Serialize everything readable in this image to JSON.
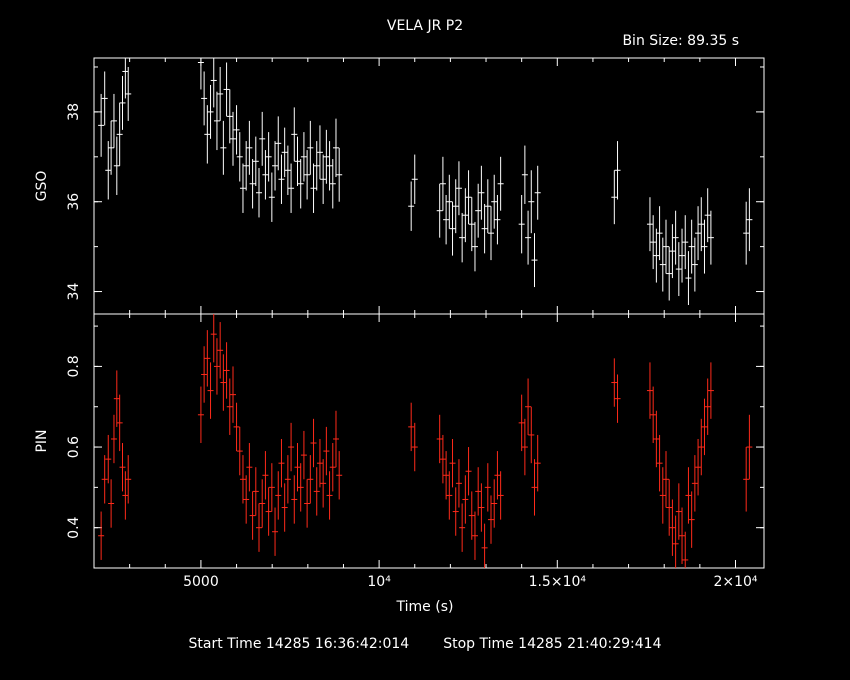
{
  "title": "VELA JR P2",
  "bin_size": "Bin Size: 89.35 s",
  "footer": {
    "start": "Start Time 14285 16:36:42:014",
    "stop": "Stop Time 14285 21:40:29:414"
  },
  "colors": {
    "background": "#000000",
    "axes": "#ffffff",
    "gso": "#ffffff",
    "pin": "#ff2a1a"
  },
  "chart_data": [
    {
      "type": "scatter",
      "name": "gso-panel",
      "ylabel": "GSO",
      "xlabel": "",
      "ylim": [
        33.5,
        39.2
      ],
      "xlim": [
        2000,
        20800
      ],
      "yticks": [
        "34",
        "36",
        "38"
      ],
      "ytick_values": [
        34,
        36,
        38
      ],
      "series": [
        {
          "x": [
            2200,
            2300,
            2400,
            2480,
            2560,
            2640,
            2720,
            2800,
            2880,
            2960,
            5000,
            5090,
            5180,
            5270,
            5360,
            5450,
            5540,
            5630,
            5720,
            5810,
            5900,
            6000,
            6090,
            6180,
            6270,
            6360,
            6450,
            6540,
            6630,
            6720,
            6810,
            6900,
            6990,
            7080,
            7170,
            7260,
            7350,
            7440,
            7530,
            7620,
            7710,
            7800,
            7890,
            7980,
            8070,
            8160,
            8250,
            8340,
            8430,
            8520,
            8610,
            8700,
            8790,
            8880,
            10900,
            11000,
            11700,
            11790,
            11880,
            11970,
            12060,
            12150,
            12240,
            12330,
            12420,
            12510,
            12600,
            12690,
            12780,
            12870,
            12960,
            13050,
            13140,
            13230,
            13320,
            13410,
            14000,
            14090,
            14180,
            14270,
            14360,
            14450,
            16600,
            16690,
            17600,
            17690,
            17780,
            17870,
            17960,
            18050,
            18140,
            18230,
            18320,
            18410,
            18500,
            18590,
            18680,
            18770,
            18860,
            18950,
            19040,
            19130,
            19220,
            19310,
            20300,
            20390
          ],
          "y": [
            37.7,
            38.3,
            36.7,
            37.2,
            37.8,
            36.8,
            37.5,
            38.2,
            38.9,
            38.4,
            39.1,
            38.3,
            37.5,
            38.0,
            38.7,
            37.8,
            38.4,
            37.2,
            38.5,
            37.9,
            37.4,
            37.6,
            37.0,
            36.3,
            36.8,
            37.2,
            36.4,
            36.9,
            36.2,
            37.4,
            36.6,
            37.0,
            36.1,
            36.8,
            37.3,
            36.5,
            37.1,
            36.7,
            36.3,
            37.5,
            36.9,
            36.4,
            37.0,
            36.6,
            37.2,
            36.3,
            36.8,
            37.1,
            36.5,
            37.0,
            36.8,
            36.4,
            37.2,
            36.6,
            35.9,
            36.5,
            35.8,
            36.4,
            35.6,
            36.0,
            35.4,
            35.9,
            36.3,
            35.2,
            35.7,
            36.1,
            35.5,
            35.0,
            35.8,
            36.2,
            35.4,
            35.9,
            35.3,
            36.0,
            35.6,
            36.4,
            35.5,
            36.6,
            35.2,
            36.0,
            34.7,
            36.2,
            36.1,
            36.7,
            35.5,
            35.1,
            34.8,
            35.3,
            34.6,
            35.0,
            34.4,
            34.9,
            35.2,
            34.5,
            34.8,
            35.1,
            34.3,
            35.0,
            34.6,
            35.3,
            35.5,
            35.0,
            35.7,
            35.2,
            35.3,
            35.6
          ],
          "err": [
            0.7,
            0.6,
            0.65,
            0.6,
            0.6,
            0.65,
            0.7,
            0.6,
            0.6,
            0.6,
            0.6,
            0.6,
            0.65,
            0.6,
            0.6,
            0.65,
            0.6,
            0.6,
            0.6,
            0.6,
            0.6,
            0.55,
            0.55,
            0.55,
            0.55,
            0.6,
            0.55,
            0.55,
            0.55,
            0.6,
            0.55,
            0.55,
            0.55,
            0.55,
            0.6,
            0.55,
            0.55,
            0.55,
            0.55,
            0.6,
            0.55,
            0.55,
            0.55,
            0.55,
            0.6,
            0.55,
            0.55,
            0.6,
            0.55,
            0.6,
            0.55,
            0.55,
            0.65,
            0.6,
            0.55,
            0.55,
            0.6,
            0.6,
            0.55,
            0.6,
            0.6,
            0.6,
            0.6,
            0.55,
            0.6,
            0.6,
            0.6,
            0.55,
            0.6,
            0.6,
            0.55,
            0.6,
            0.6,
            0.6,
            0.55,
            0.6,
            0.65,
            0.65,
            0.6,
            0.7,
            0.6,
            0.6,
            0.6,
            0.65,
            0.6,
            0.6,
            0.6,
            0.6,
            0.6,
            0.6,
            0.6,
            0.6,
            0.6,
            0.6,
            0.6,
            0.6,
            0.6,
            0.6,
            0.6,
            0.6,
            0.6,
            0.6,
            0.6,
            0.6,
            0.7,
            0.7
          ],
          "color": "#ffffff"
        }
      ]
    },
    {
      "type": "scatter",
      "name": "pin-panel",
      "ylabel": "PIN",
      "xlabel": "Time (s)",
      "ylim": [
        0.3,
        0.93
      ],
      "xlim": [
        2000,
        20800
      ],
      "yticks": [
        "0.4",
        "0.6",
        "0.8"
      ],
      "ytick_values": [
        0.4,
        0.6,
        0.8
      ],
      "xticks": [
        "5000",
        "10⁴",
        "1.5×10⁴",
        "2×10⁴"
      ],
      "xtick_values": [
        5000,
        10000,
        15000,
        20000
      ],
      "series": [
        {
          "x": [
            2200,
            2300,
            2400,
            2480,
            2560,
            2640,
            2720,
            2800,
            2880,
            2960,
            5000,
            5090,
            5180,
            5270,
            5360,
            5450,
            5540,
            5630,
            5720,
            5810,
            5900,
            6000,
            6090,
            6180,
            6270,
            6360,
            6450,
            6540,
            6630,
            6720,
            6810,
            6900,
            6990,
            7080,
            7170,
            7260,
            7350,
            7440,
            7530,
            7620,
            7710,
            7800,
            7890,
            7980,
            8070,
            8160,
            8250,
            8340,
            8430,
            8520,
            8610,
            8700,
            8790,
            8880,
            10900,
            11000,
            11700,
            11790,
            11880,
            11970,
            12060,
            12150,
            12240,
            12330,
            12420,
            12510,
            12600,
            12690,
            12780,
            12870,
            12960,
            13050,
            13140,
            13230,
            13320,
            13410,
            14000,
            14090,
            14180,
            14270,
            14360,
            14450,
            16600,
            16690,
            17600,
            17690,
            17780,
            17870,
            17960,
            18050,
            18140,
            18230,
            18320,
            18410,
            18500,
            18590,
            18680,
            18770,
            18860,
            18950,
            19040,
            19130,
            19220,
            19310,
            20300,
            20390
          ],
          "y": [
            0.38,
            0.52,
            0.57,
            0.46,
            0.62,
            0.72,
            0.66,
            0.55,
            0.48,
            0.52,
            0.68,
            0.78,
            0.82,
            0.74,
            0.88,
            0.8,
            0.84,
            0.76,
            0.79,
            0.7,
            0.73,
            0.65,
            0.59,
            0.52,
            0.47,
            0.55,
            0.43,
            0.49,
            0.4,
            0.46,
            0.53,
            0.44,
            0.5,
            0.39,
            0.48,
            0.56,
            0.45,
            0.52,
            0.6,
            0.47,
            0.55,
            0.5,
            0.58,
            0.46,
            0.52,
            0.61,
            0.49,
            0.56,
            0.51,
            0.59,
            0.48,
            0.55,
            0.62,
            0.53,
            0.65,
            0.6,
            0.62,
            0.57,
            0.53,
            0.48,
            0.56,
            0.44,
            0.51,
            0.4,
            0.47,
            0.54,
            0.43,
            0.38,
            0.49,
            0.45,
            0.35,
            0.5,
            0.42,
            0.46,
            0.53,
            0.48,
            0.66,
            0.6,
            0.7,
            0.63,
            0.5,
            0.56,
            0.76,
            0.72,
            0.74,
            0.68,
            0.62,
            0.56,
            0.48,
            0.52,
            0.45,
            0.4,
            0.36,
            0.44,
            0.38,
            0.32,
            0.48,
            0.42,
            0.51,
            0.55,
            0.6,
            0.65,
            0.7,
            0.74,
            0.52,
            0.6
          ],
          "err": [
            0.06,
            0.06,
            0.06,
            0.06,
            0.06,
            0.07,
            0.07,
            0.06,
            0.06,
            0.06,
            0.07,
            0.07,
            0.07,
            0.07,
            0.07,
            0.07,
            0.07,
            0.07,
            0.07,
            0.07,
            0.07,
            0.06,
            0.06,
            0.06,
            0.06,
            0.06,
            0.06,
            0.06,
            0.06,
            0.06,
            0.06,
            0.06,
            0.06,
            0.06,
            0.06,
            0.06,
            0.06,
            0.06,
            0.06,
            0.06,
            0.06,
            0.06,
            0.06,
            0.06,
            0.06,
            0.06,
            0.06,
            0.06,
            0.06,
            0.06,
            0.06,
            0.06,
            0.07,
            0.06,
            0.06,
            0.06,
            0.06,
            0.06,
            0.06,
            0.06,
            0.06,
            0.06,
            0.06,
            0.06,
            0.06,
            0.06,
            0.06,
            0.06,
            0.06,
            0.06,
            0.06,
            0.06,
            0.06,
            0.06,
            0.06,
            0.06,
            0.07,
            0.07,
            0.07,
            0.07,
            0.07,
            0.07,
            0.06,
            0.06,
            0.07,
            0.07,
            0.07,
            0.07,
            0.07,
            0.07,
            0.07,
            0.07,
            0.07,
            0.07,
            0.07,
            0.07,
            0.07,
            0.07,
            0.07,
            0.07,
            0.07,
            0.07,
            0.07,
            0.07,
            0.08,
            0.08
          ],
          "color": "#ff2a1a"
        }
      ]
    }
  ]
}
